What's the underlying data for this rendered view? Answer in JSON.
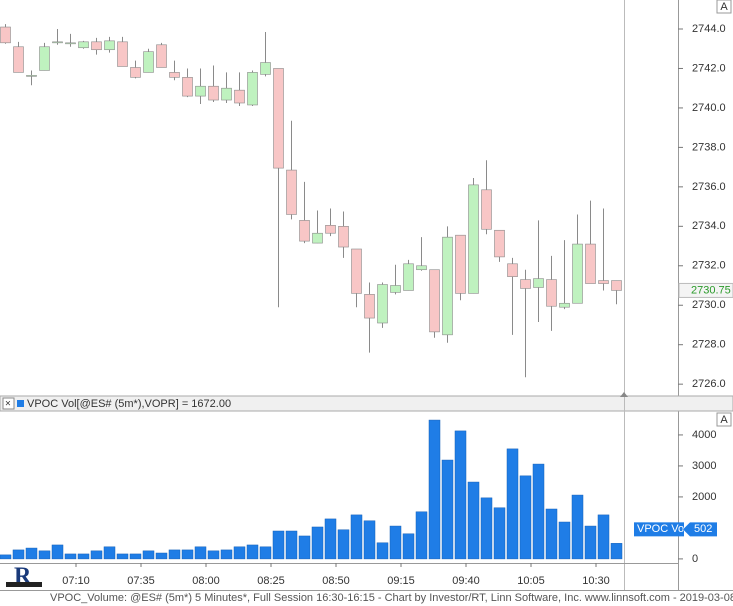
{
  "chart_data": [
    {
      "type": "candlestick",
      "button": "A",
      "open": [
        2744.1,
        2743.1,
        2741.65,
        2741.9,
        2743.35,
        2743.3,
        2743.05,
        2743.35,
        2742.95,
        2743.35,
        2742.05,
        2741.8,
        2743.2,
        2741.8,
        2741.55,
        2740.6,
        2741.1,
        2740.4,
        2740.9,
        2740.15,
        2741.7,
        2742.0,
        2736.85,
        2734.3,
        2733.15,
        2734.05,
        2734.0,
        2732.85,
        2730.55,
        2729.1,
        2730.65,
        2730.75,
        2731.8,
        2731.8,
        2728.5,
        2733.55,
        2730.6,
        2735.85,
        2733.8,
        2732.1,
        2731.3,
        2730.9,
        2731.3,
        2729.9,
        2730.1,
        2733.1,
        2731.25,
        2731.25
      ],
      "high": [
        2744.25,
        2743.35,
        2741.9,
        2743.3,
        2744.0,
        2743.75,
        2743.4,
        2743.55,
        2743.6,
        2743.6,
        2742.4,
        2743.0,
        2743.3,
        2742.4,
        2742.0,
        2742.0,
        2742.15,
        2741.8,
        2741.8,
        2741.9,
        2743.85,
        2742.0,
        2739.35,
        2736.25,
        2734.8,
        2734.9,
        2734.75,
        2732.85,
        2731.15,
        2731.15,
        2732.05,
        2732.3,
        2733.45,
        2731.8,
        2734.0,
        2733.55,
        2736.45,
        2737.35,
        2733.8,
        2732.4,
        2731.8,
        2734.3,
        2732.5,
        2733.3,
        2734.6,
        2735.3,
        2734.9,
        2731.25
      ],
      "low": [
        2743.25,
        2741.8,
        2741.15,
        2741.9,
        2743.2,
        2743.1,
        2743.0,
        2742.7,
        2742.8,
        2742.1,
        2741.5,
        2741.8,
        2742.05,
        2741.4,
        2740.55,
        2740.2,
        2740.3,
        2740.25,
        2740.1,
        2740.1,
        2741.6,
        2729.9,
        2734.35,
        2733.15,
        2733.15,
        2733.5,
        2732.4,
        2729.9,
        2727.6,
        2728.85,
        2730.55,
        2730.75,
        2731.75,
        2728.35,
        2728.1,
        2730.25,
        2730.6,
        2733.6,
        2732.2,
        2728.5,
        2726.35,
        2729.15,
        2728.7,
        2729.8,
        2730.1,
        2731.1,
        2730.75,
        2730.05
      ],
      "close": [
        2743.3,
        2741.8,
        2741.65,
        2743.1,
        2743.35,
        2743.3,
        2743.35,
        2742.95,
        2743.4,
        2742.1,
        2741.55,
        2742.85,
        2742.05,
        2741.55,
        2740.6,
        2741.1,
        2740.4,
        2741.0,
        2740.25,
        2741.8,
        2742.3,
        2736.95,
        2734.6,
        2733.25,
        2733.65,
        2733.65,
        2732.95,
        2730.6,
        2729.35,
        2731.05,
        2731.0,
        2732.1,
        2732.0,
        2728.65,
        2733.45,
        2730.6,
        2736.1,
        2733.85,
        2732.45,
        2731.45,
        2730.85,
        2731.35,
        2729.95,
        2730.1,
        2733.1,
        2731.1,
        2731.1,
        2730.75
      ],
      "up_color": "#bff2bf",
      "down_color": "#f8c6c6",
      "wick_color": "#8a8a8a",
      "ylim": [
        2725.4,
        2745.47
      ],
      "yticks": [
        {
          "value": 2726,
          "label": "2726.0"
        },
        {
          "value": 2728,
          "label": "2728.0"
        },
        {
          "value": 2730,
          "label": "2730.0"
        },
        {
          "value": 2732,
          "label": "2732.0"
        },
        {
          "value": 2734,
          "label": "2734.0"
        },
        {
          "value": 2736,
          "label": "2736.0"
        },
        {
          "value": 2738,
          "label": "2738.0"
        },
        {
          "value": 2740,
          "label": "2740.0"
        },
        {
          "value": 2742,
          "label": "2742.0"
        },
        {
          "value": 2744,
          "label": "2744.0"
        }
      ]
    },
    {
      "type": "bar",
      "title": "VPOC Vol[@ES# (5m*),VOPR] = 1672.00",
      "button": "A",
      "categories": [
        null,
        null,
        null,
        null,
        null,
        "07:10",
        null,
        null,
        null,
        null,
        "07:35",
        null,
        null,
        null,
        null,
        "08:00",
        null,
        null,
        null,
        null,
        "08:25",
        null,
        null,
        null,
        null,
        "08:50",
        null,
        null,
        null,
        null,
        "09:15",
        null,
        null,
        null,
        null,
        "09:40",
        null,
        null,
        null,
        null,
        "10:05",
        null,
        null,
        null,
        null,
        "10:30",
        null,
        null
      ],
      "series": [
        {
          "name": "VPOC Vol",
          "color": "#1f7de6",
          "values": [
            130,
            290,
            350,
            260,
            450,
            160,
            160,
            260,
            390,
            160,
            160,
            260,
            190,
            290,
            290,
            390,
            260,
            290,
            390,
            450,
            390,
            900,
            900,
            740,
            1030,
            1290,
            940,
            1420,
            1230,
            520,
            1060,
            810,
            1520,
            4480,
            3190,
            4130,
            2480,
            1970,
            1650,
            3550,
            2680,
            3060,
            1610,
            1190,
            2060,
            1060,
            1420,
            502
          ]
        }
      ],
      "ylim": [
        -100,
        4740
      ],
      "yticks": [
        0,
        1000,
        2000,
        3000,
        4000
      ]
    }
  ],
  "footer": "VPOC_Volume: @ES# (5m*) 5 Minutes*, Full Session 16:30-16:15 - Chart by Investor/RT, Linn Software, Inc. www.linnsoft.com - 2019-03-08"
}
